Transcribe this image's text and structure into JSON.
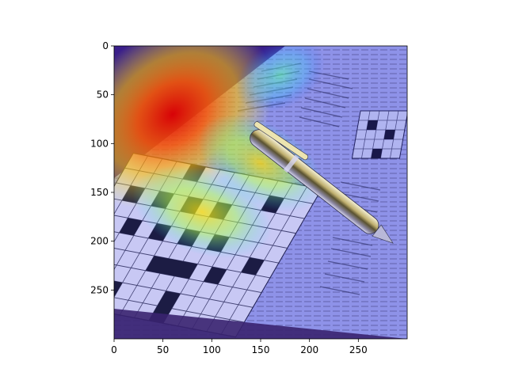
{
  "chart_data": {
    "type": "heatmap",
    "title": "",
    "xlabel": "",
    "ylabel": "",
    "image": {
      "description": "crossword-puzzle",
      "width": 300,
      "height": 300
    },
    "xlim": [
      0,
      300
    ],
    "ylim": [
      300,
      0
    ],
    "y_axis_inverted": true,
    "x_ticks": [
      0,
      50,
      100,
      150,
      200,
      250
    ],
    "y_ticks": [
      0,
      50,
      100,
      150,
      200,
      250
    ],
    "x_tick_labels": [
      "0",
      "50",
      "100",
      "150",
      "200",
      "250"
    ],
    "y_tick_labels": [
      "0",
      "50",
      "100",
      "150",
      "200",
      "250"
    ],
    "colormap": "jet",
    "overlay_alpha": 0.5,
    "grid": false,
    "legend": "none",
    "hotspots": [
      {
        "x": 60,
        "y": 70,
        "intensity": 1.0
      },
      {
        "x": 150,
        "y": 120,
        "intensity": 0.6
      },
      {
        "x": 90,
        "y": 170,
        "intensity": 0.55
      },
      {
        "x": 170,
        "y": 30,
        "intensity": 0.45
      }
    ]
  }
}
